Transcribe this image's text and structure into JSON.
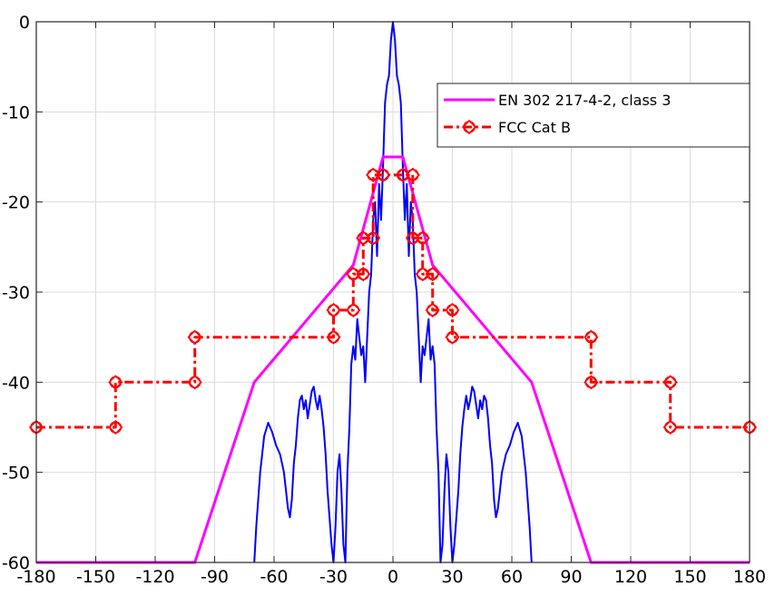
{
  "chart_data": {
    "type": "line",
    "title": "",
    "xlabel": "",
    "ylabel": "",
    "xlim": [
      -180,
      180
    ],
    "ylim": [
      -60,
      0
    ],
    "grid": true,
    "legend_placement": "top-right",
    "x_ticks": [
      {
        "pos": -180,
        "label": "-180"
      },
      {
        "pos": -150,
        "label": "-150"
      },
      {
        "pos": -120,
        "label": "-120"
      },
      {
        "pos": -90,
        "label": "-90"
      },
      {
        "pos": -60,
        "label": "-60"
      },
      {
        "pos": -30,
        "label": "-30"
      },
      {
        "pos": 0,
        "label": "0"
      },
      {
        "pos": 30,
        "label": "30"
      },
      {
        "pos": 60,
        "label": "60"
      },
      {
        "pos": 90,
        "label": "90"
      },
      {
        "pos": 120,
        "label": "120"
      },
      {
        "pos": 150,
        "label": "150"
      },
      {
        "pos": 180,
        "label": "180"
      }
    ],
    "y_ticks": [
      {
        "pos": 0,
        "label": "0"
      },
      {
        "pos": -10,
        "label": "-10"
      },
      {
        "pos": -20,
        "label": "-20"
      },
      {
        "pos": -30,
        "label": "-30"
      },
      {
        "pos": -40,
        "label": "-40"
      },
      {
        "pos": -50,
        "label": "-50"
      },
      {
        "pos": -60,
        "label": "-60"
      }
    ],
    "series": [
      {
        "name": "EN 302 217-4-2, class 3",
        "color": "#ff00ff",
        "style": "solid",
        "marker": "none",
        "x": [
          -180,
          -100,
          -70,
          -20,
          -5,
          5,
          20,
          70,
          100,
          180
        ],
        "y": [
          -60,
          -60,
          -40,
          -27,
          -15,
          -15,
          -27,
          -40,
          -60,
          -60
        ]
      },
      {
        "name": "FCC Cat B",
        "color": "#ff0000",
        "style": "dashdot",
        "marker": "diamond-circle",
        "x": [
          -180,
          -140,
          -140,
          -100,
          -100,
          -30,
          -30,
          -20,
          -20,
          -15,
          -15,
          -10,
          -10,
          -5,
          -5,
          5,
          5,
          10,
          10,
          15,
          15,
          20,
          20,
          30,
          30,
          100,
          100,
          140,
          140,
          180
        ],
        "y": [
          -45,
          -45,
          -40,
          -40,
          -35,
          -35,
          -32,
          -32,
          -28,
          -28,
          -24,
          -24,
          -17,
          -17,
          -17,
          -17,
          -17,
          -17,
          -24,
          -24,
          -28,
          -28,
          -32,
          -32,
          -35,
          -35,
          -40,
          -40,
          -45,
          -45
        ]
      },
      {
        "name": "",
        "color": "#0000ff",
        "style": "solid",
        "marker": "none",
        "x": [
          -70,
          -69,
          -67,
          -65,
          -63,
          -61,
          -59,
          -57,
          -55,
          -54,
          -53,
          -52,
          -51,
          -50,
          -49,
          -48,
          -47,
          -46,
          -45,
          -44,
          -43,
          -42,
          -41,
          -40,
          -39,
          -38,
          -37,
          -36,
          -35,
          -34,
          -33,
          -32,
          -31,
          -30,
          -29,
          -28,
          -27,
          -26,
          -25,
          -24,
          -23,
          -22,
          -21,
          -20,
          -19,
          -18,
          -17,
          -16,
          -15,
          -14,
          -13,
          -12,
          -11,
          -10,
          -9,
          -8,
          -7,
          -6,
          -5,
          -4,
          -3,
          -2,
          -1,
          0,
          1,
          2,
          3,
          4,
          5,
          6,
          7,
          8,
          9,
          10,
          11,
          12,
          13,
          14,
          15,
          16,
          17,
          18,
          19,
          20,
          21,
          22,
          23,
          24,
          25,
          26,
          27,
          28,
          29,
          30,
          31,
          32,
          33,
          34,
          35,
          36,
          37,
          38,
          39,
          40,
          41,
          42,
          43,
          44,
          45,
          46,
          47,
          48,
          49,
          50,
          51,
          52,
          53,
          54,
          55,
          57,
          59,
          61,
          63,
          65,
          67,
          69,
          70
        ],
        "y": [
          -60,
          -56,
          -50,
          -46,
          -44.5,
          -45.5,
          -47,
          -48,
          -50,
          -52,
          -54,
          -55,
          -53,
          -49,
          -47,
          -44,
          -42,
          -41.5,
          -43,
          -42,
          -44,
          -42.5,
          -41,
          -40.5,
          -42,
          -43,
          -41.5,
          -43,
          -45,
          -48,
          -52,
          -55,
          -58,
          -60,
          -56,
          -50,
          -48,
          -52,
          -58,
          -60,
          -50,
          -45,
          -38,
          -36,
          -37.5,
          -33,
          -35,
          -37,
          -36,
          -40,
          -35,
          -30,
          -28,
          -22,
          -20,
          -26,
          -18,
          -22,
          -16,
          -9,
          -7,
          -6,
          -2,
          0,
          -2,
          -6,
          -7,
          -9,
          -16,
          -22,
          -18,
          -26,
          -20,
          -22,
          -28,
          -30,
          -35,
          -40,
          -36,
          -37,
          -35,
          -33,
          -37.5,
          -36,
          -38,
          -45,
          -50,
          -60,
          -58,
          -52,
          -48,
          -50,
          -56,
          -60,
          -58,
          -55,
          -52,
          -48,
          -45,
          -43,
          -41.5,
          -43,
          -42,
          -40.5,
          -41,
          -42.5,
          -44,
          -42,
          -43,
          -41.5,
          -42,
          -44,
          -47,
          -49,
          -53,
          -55,
          -54,
          -52,
          -50,
          -48,
          -47,
          -45.5,
          -44.5,
          -46,
          -50,
          -56,
          -60
        ]
      }
    ]
  }
}
